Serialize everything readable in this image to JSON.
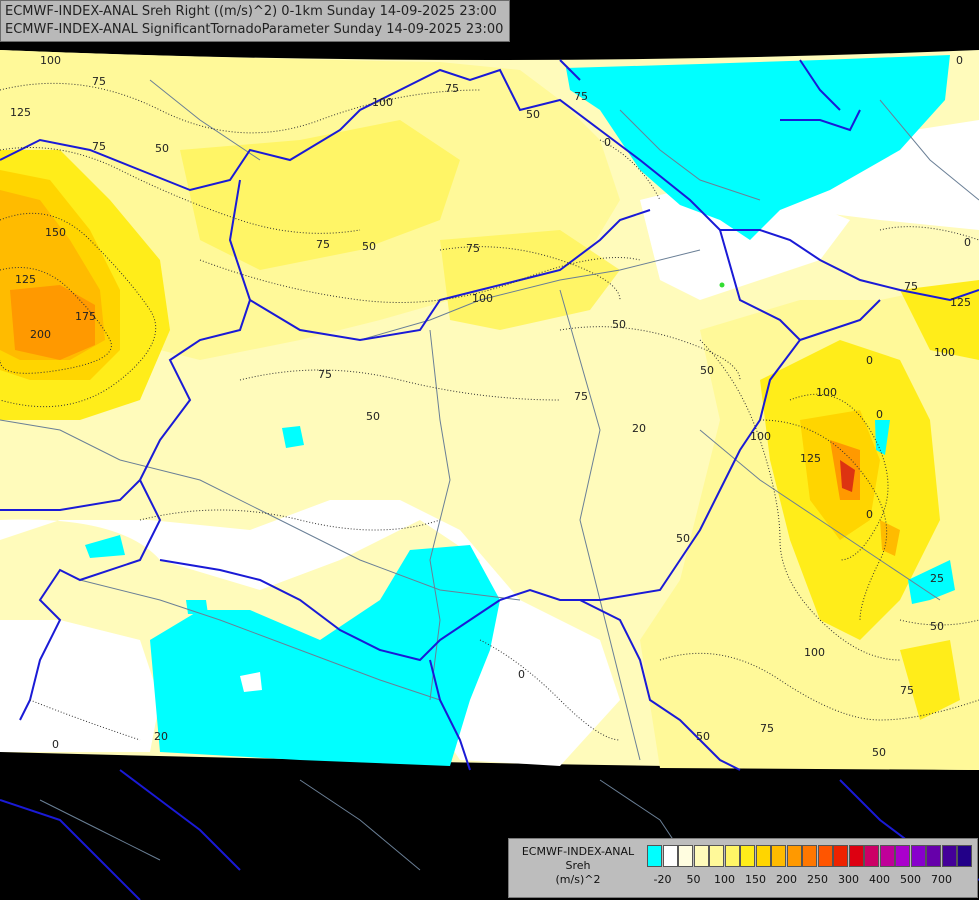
{
  "header": {
    "line1": "ECMWF-INDEX-ANAL Sreh Right ((m/s)^2) 0-1km Sunday 14-09-2025 23:00",
    "line2": "ECMWF-INDEX-ANAL SignificantTornadoParameter Sunday 14-09-2025 23:00"
  },
  "legend": {
    "title_line1": "ECMWF-INDEX-ANAL",
    "title_line2": "Sreh",
    "title_line3": "(m/s)^2",
    "colors": [
      "#00ffff",
      "#ffffff",
      "#fffde0",
      "#fffbbb",
      "#fff999",
      "#fff566",
      "#ffed1a",
      "#ffd500",
      "#ffbb00",
      "#ff9900",
      "#ff7700",
      "#ff5500",
      "#ee2200",
      "#dd0011",
      "#cc0066",
      "#c00099",
      "#aa00cc",
      "#8800cc",
      "#6600aa",
      "#440099",
      "#220088"
    ],
    "tick_labels": [
      "-20",
      "50",
      "100",
      "150",
      "200",
      "250",
      "300",
      "400",
      "500",
      "700"
    ]
  },
  "contour_labels": [
    "100",
    "75",
    "125",
    "50",
    "75",
    "150",
    "125",
    "175",
    "200",
    "100",
    "75",
    "75",
    "50",
    "75",
    "50",
    "75",
    "100",
    "50",
    "0",
    "0",
    "75",
    "0",
    "50",
    "50",
    "75",
    "100",
    "100",
    "0",
    "125",
    "125",
    "100",
    "0",
    "75",
    "50",
    "50",
    "0",
    "0",
    "75",
    "20",
    "0",
    "100",
    "50",
    "75",
    "50",
    "25",
    "20"
  ],
  "colors": {
    "background": "#000000",
    "border": "#1a1ad6",
    "river": "#6a7f96",
    "low_cyan": "#00ffff",
    "pale": "#fffbbb",
    "yellow": "#fff566",
    "orange": "#ffbb00"
  }
}
